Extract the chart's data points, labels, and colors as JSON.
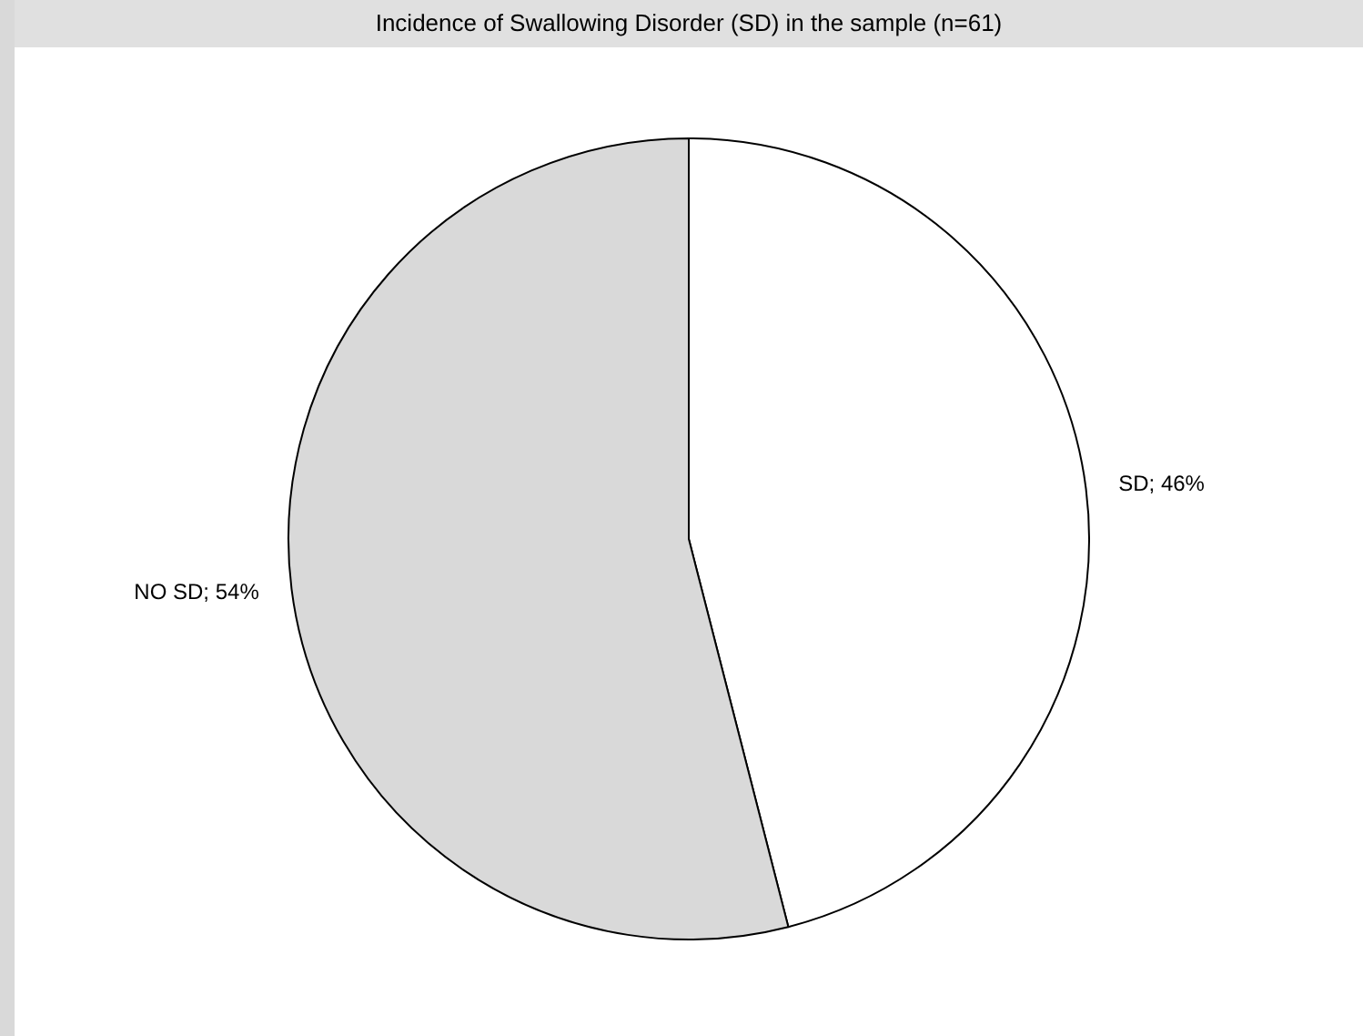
{
  "chart_data": {
    "type": "pie",
    "title": "Incidence of Swallowing Disorder (SD) in the sample (n=61)",
    "categories": [
      "SD; 46%",
      "NO SD; 54%"
    ],
    "values": [
      46,
      54
    ],
    "colors": [
      "#ffffff",
      "#d9d9d9"
    ],
    "legend": false
  }
}
